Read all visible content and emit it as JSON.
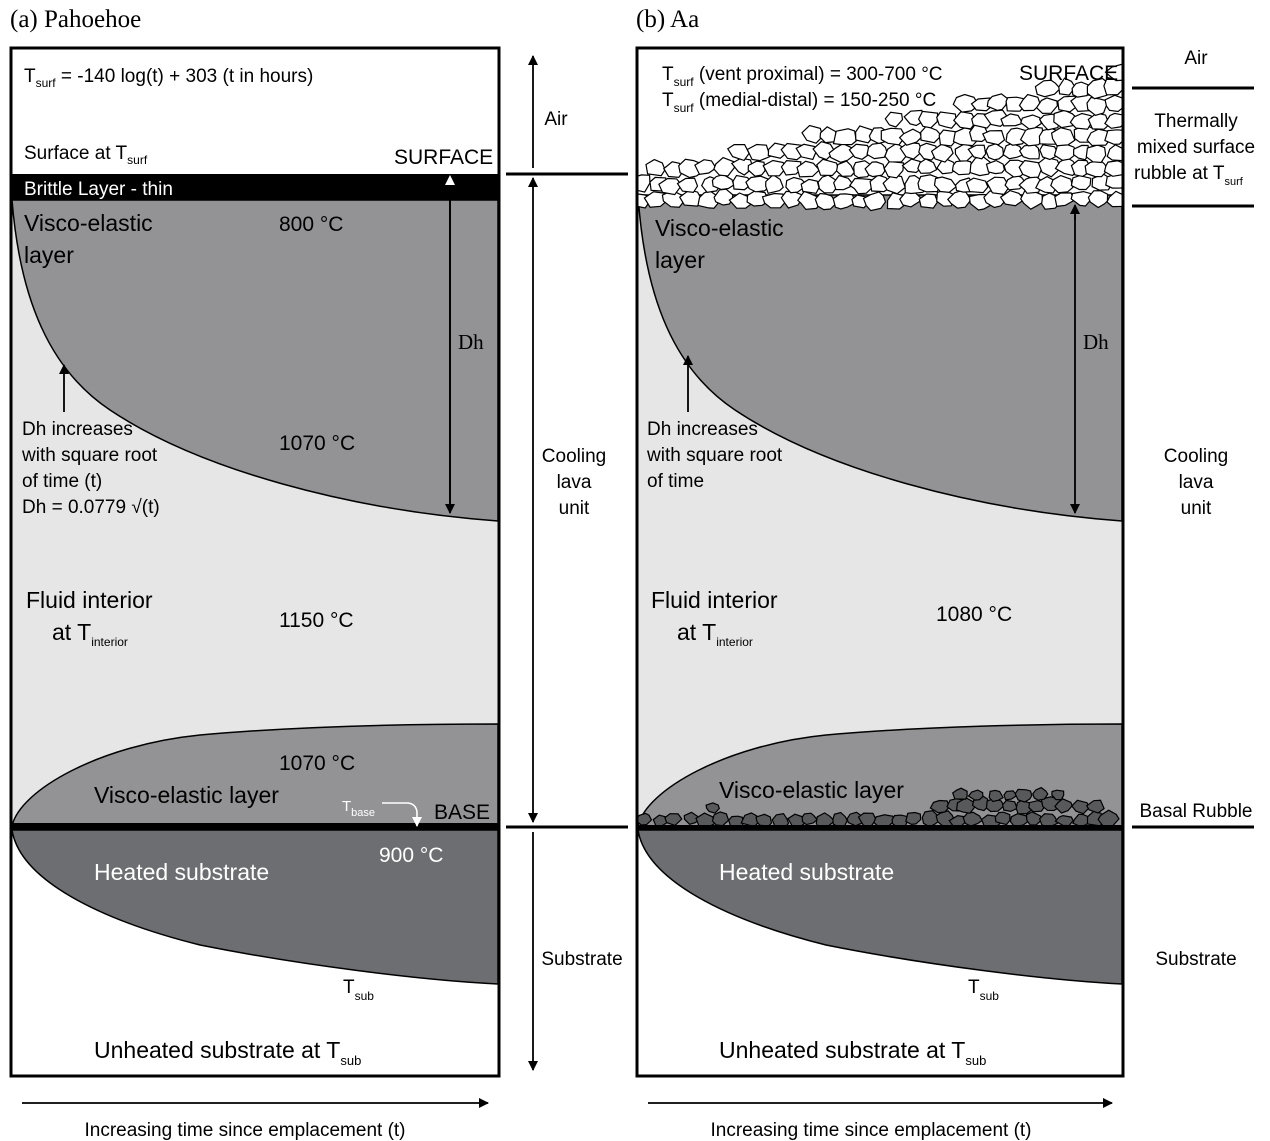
{
  "panel_a": {
    "title": "(a) Pahoehoe",
    "equation": {
      "pre": "T",
      "sub": "surf",
      "post": " = -140 log(t) + 303 (t in hours)"
    },
    "surface_at": {
      "pre": "Surface at T",
      "sub": "surf"
    },
    "surface_label": "SURFACE",
    "brittle_layer": "Brittle Layer - thin",
    "visco_top": [
      "Visco-elastic",
      "layer"
    ],
    "temp_800": "800 °C",
    "dh": "Dh",
    "dh_note": [
      "Dh increases",
      "with square root",
      "of time (t)",
      "Dh =  0.0779 √(t)"
    ],
    "temp_1070_top": "1070 °C",
    "fluid_interior": "Fluid interior",
    "at_t_interior": {
      "pre": "at T",
      "sub": "interior"
    },
    "temp_1150": "1150 °C",
    "temp_1070_bottom": "1070 °C",
    "visco_bottom": "Visco-elastic layer",
    "t_base": {
      "pre": "T",
      "sub": "base"
    },
    "base_label": "BASE",
    "temp_900": "900 °C",
    "heated_substrate": "Heated substrate",
    "t_sub": {
      "pre": "T",
      "sub": "sub"
    },
    "unheated": {
      "pre": "Unheated substrate at T",
      "sub": "sub"
    },
    "time_axis": "Increasing time since emplacement (t)"
  },
  "middle_axis": {
    "air": "Air",
    "cooling": [
      "Cooling",
      "lava",
      "unit"
    ],
    "substrate": "Substrate"
  },
  "panel_b": {
    "title": "(b) Aa",
    "tsurf_vent": {
      "pre": "T",
      "sub": "surf",
      "post": " (vent proximal) = 300-700 °C"
    },
    "tsurf_medial": {
      "pre": "T",
      "sub": "surf",
      "post": " (medial-distal) = 150-250 °C"
    },
    "surface_label": "SURFACE",
    "visco_top": [
      "Visco-elastic",
      "layer"
    ],
    "dh": "Dh",
    "dh_note": [
      "Dh increases",
      "with square root",
      "of time"
    ],
    "fluid_interior": "Fluid interior",
    "at_t_interior": {
      "pre": "at T",
      "sub": "interior"
    },
    "temp_1080": "1080 °C",
    "visco_bottom": "Visco-elastic layer",
    "heated_substrate": "Heated substrate",
    "t_sub": {
      "pre": "T",
      "sub": "sub"
    },
    "unheated": {
      "pre": "Unheated substrate at T",
      "sub": "sub"
    },
    "time_axis": "Increasing time since emplacement (t)"
  },
  "right_axis": {
    "air": "Air",
    "rubble": [
      "Thermally",
      "mixed surface"
    ],
    "rubble_at": {
      "pre": "rubble at T",
      "sub": "surf"
    },
    "cooling": [
      "Cooling",
      "lava",
      "unit"
    ],
    "basal_rubble": "Basal Rubble",
    "substrate": "Substrate"
  },
  "colors": {
    "fluid": "#e6e6e6",
    "visco": "#939396",
    "heated": "#6d6e71",
    "brittle": "#000000",
    "rubble_fill": "#ffffff",
    "basal_rubble_fill": "#58595b"
  }
}
